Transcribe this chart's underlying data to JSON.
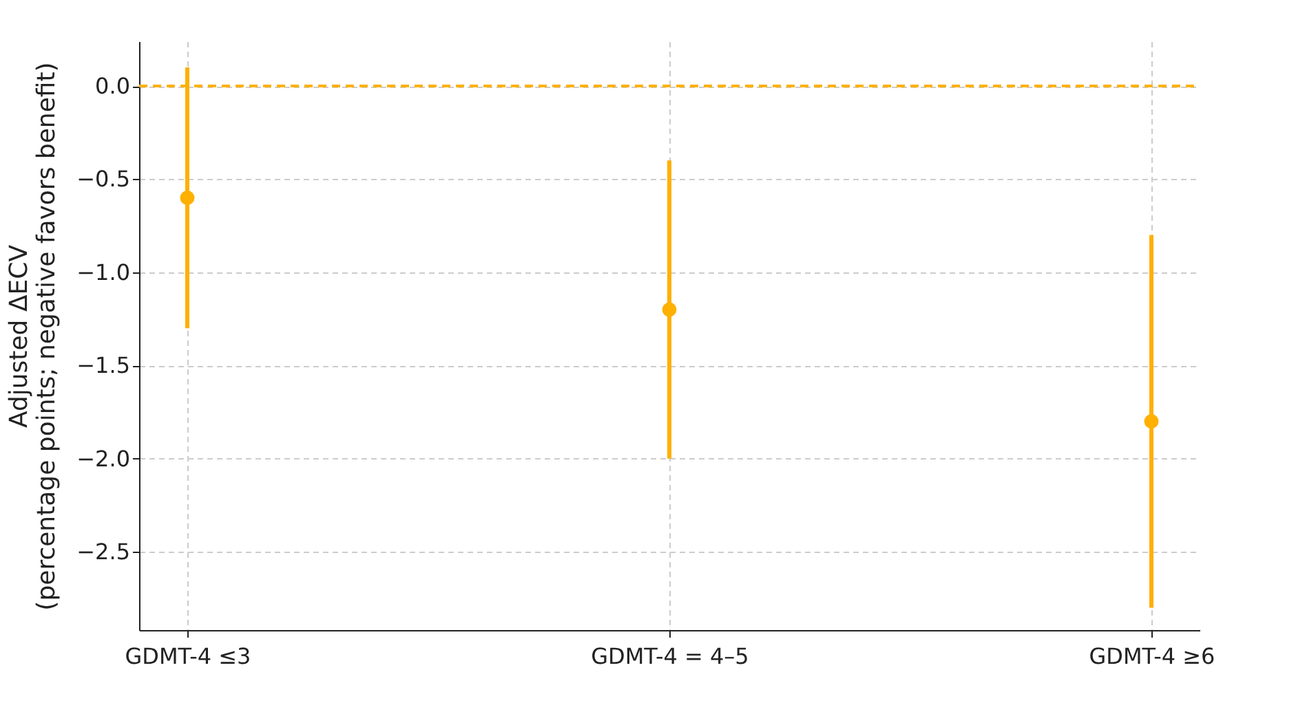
{
  "chart_data": {
    "type": "scatter",
    "ylabel": "Adjusted ΔECV\n(percentage points; negative favors benefit)",
    "categories": [
      "GDMT-4 ≤3",
      "GDMT-4 = 4–5",
      "GDMT-4 ≥6"
    ],
    "series": [
      {
        "color": "#ffb000",
        "values": [
          -0.6,
          -1.2,
          -1.8
        ],
        "errors": [
          [
            -1.3,
            0.1
          ],
          [
            -2.0,
            -0.4
          ],
          [
            -2.8,
            -0.8
          ]
        ]
      }
    ],
    "ylim": [
      -2.92,
      0.24
    ],
    "yticks": [
      {
        "value": 0,
        "label": "0.0"
      },
      {
        "value": -0.5,
        "label": "−0.5"
      },
      {
        "value": -1,
        "label": "−1.0"
      },
      {
        "value": -1.5,
        "label": "−1.5"
      },
      {
        "value": -2,
        "label": "−2.0"
      },
      {
        "value": -2.5,
        "label": "−2.5"
      }
    ],
    "ref_lines": [
      {
        "axis": "y",
        "value": 0,
        "color": "#ffb000",
        "line_style": "dashed"
      }
    ],
    "grid": true,
    "marker": "circle"
  }
}
